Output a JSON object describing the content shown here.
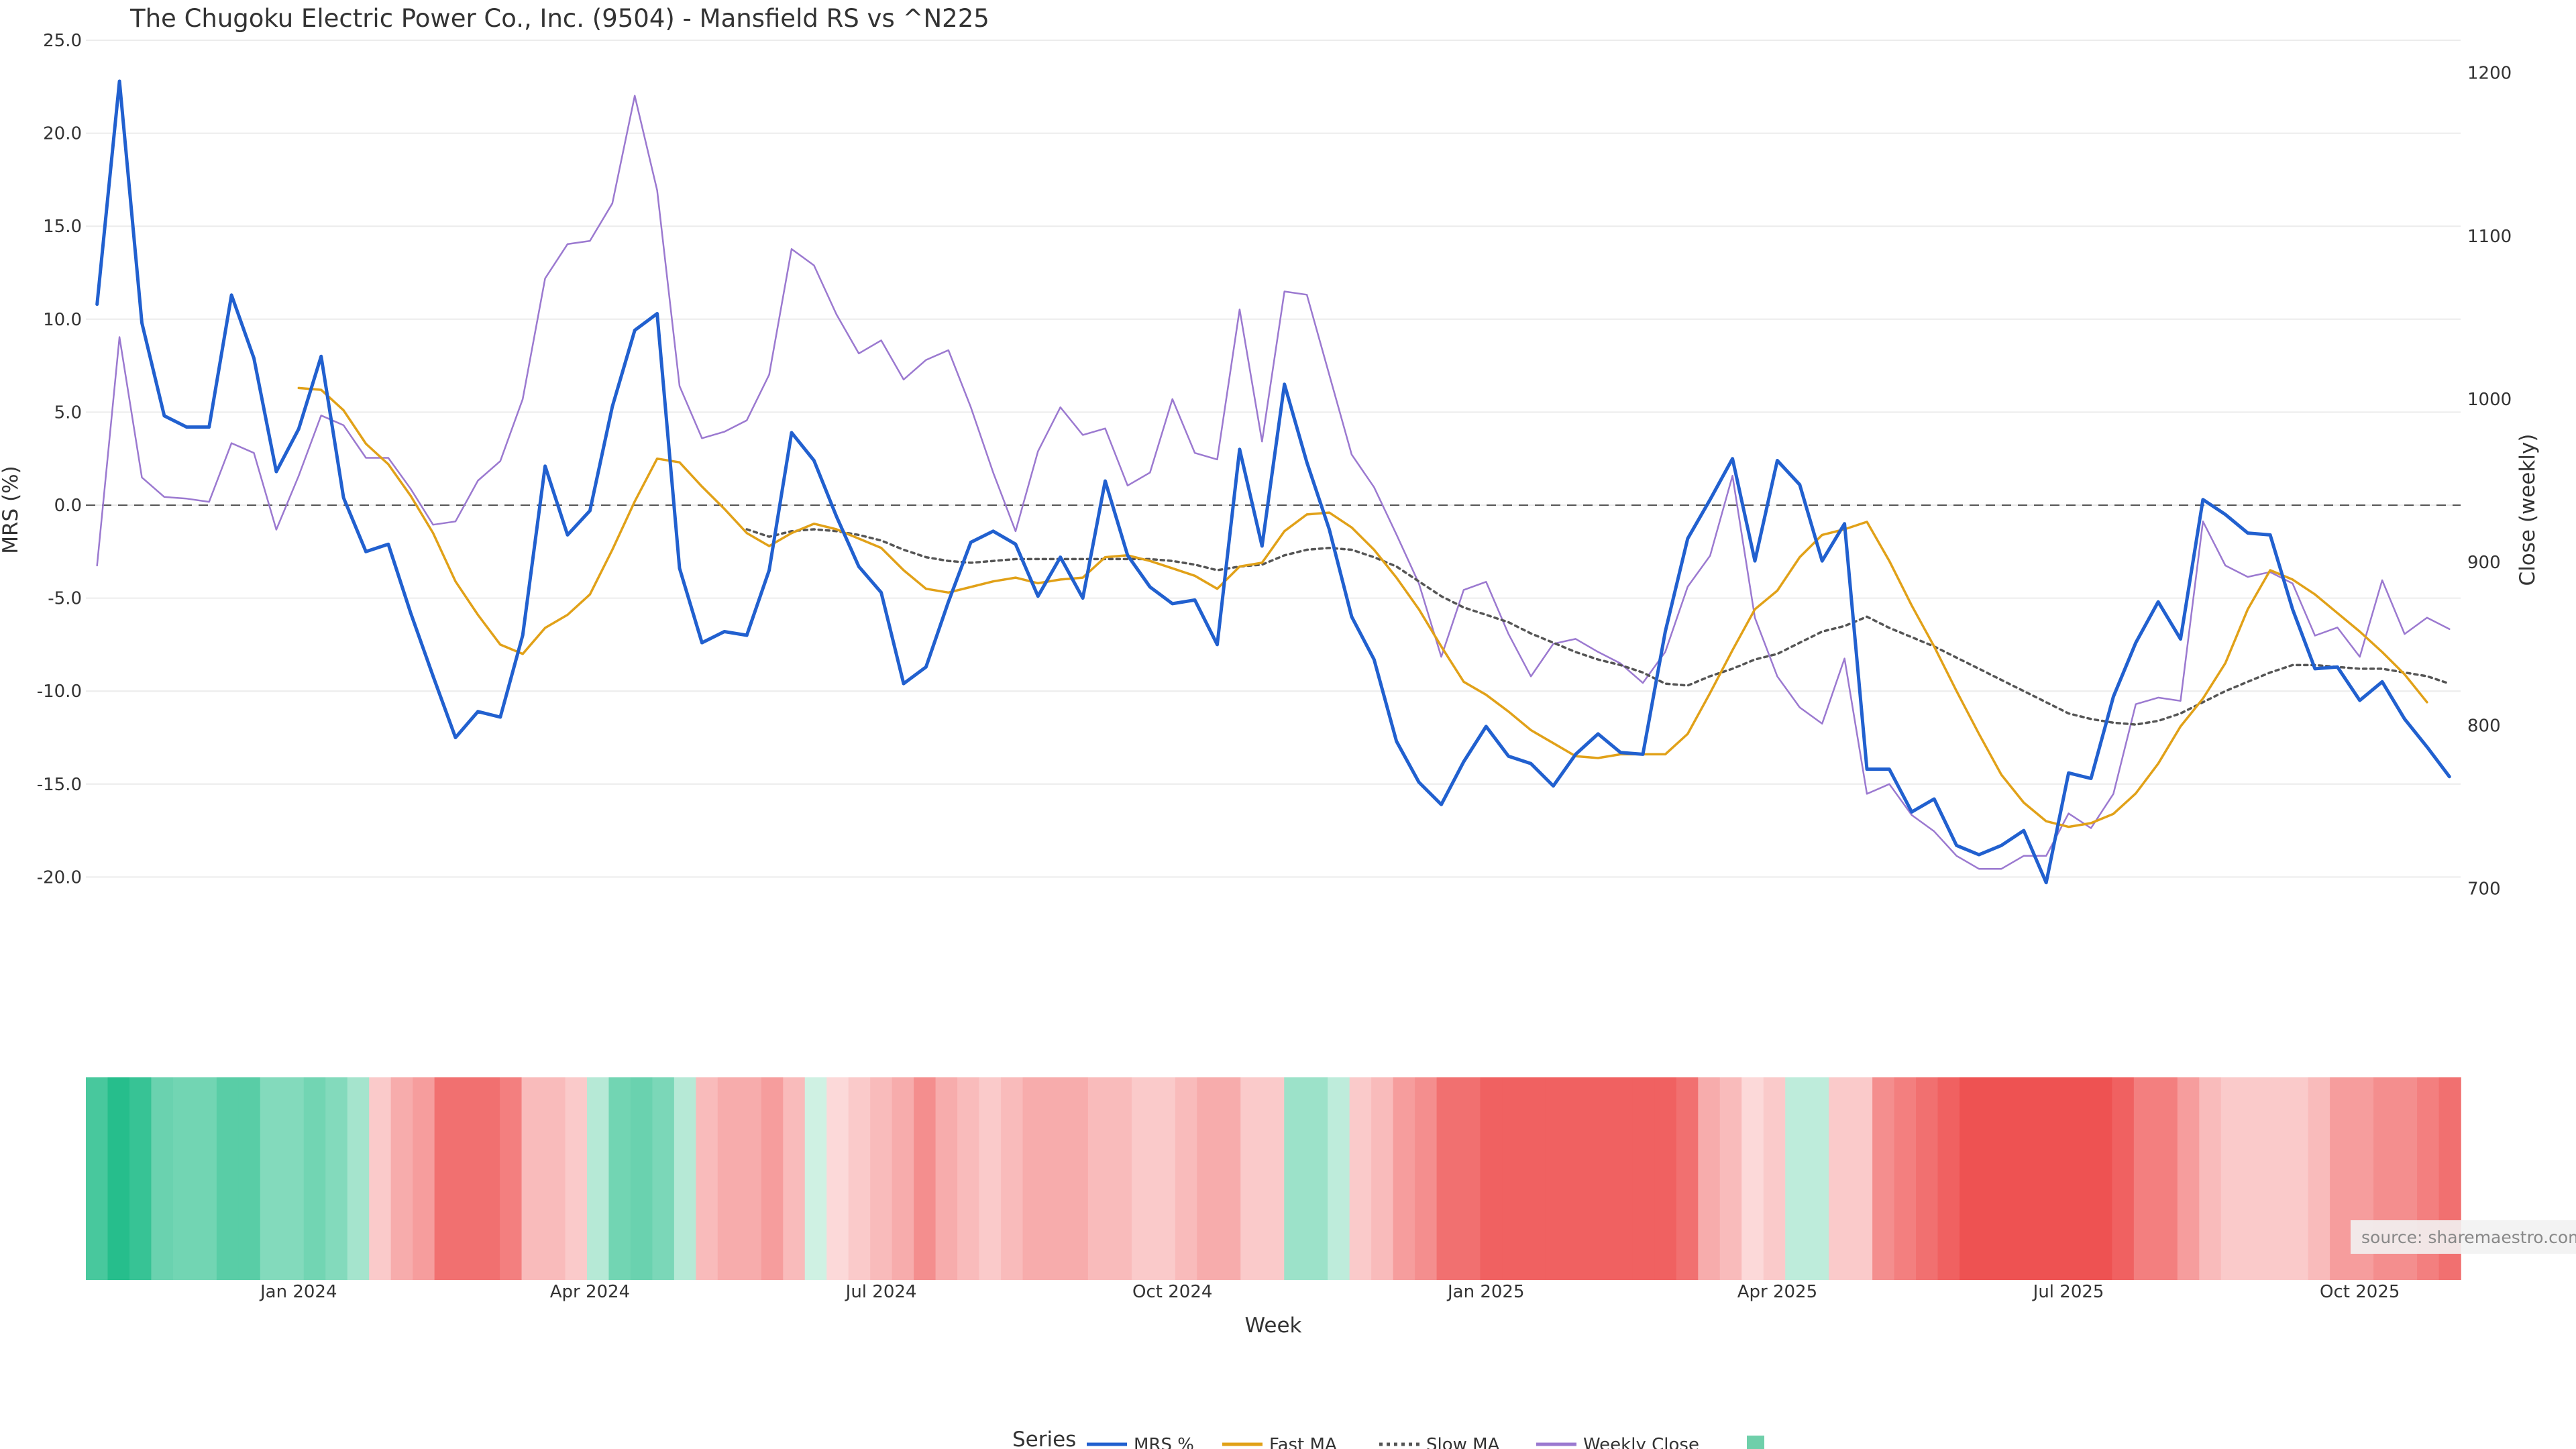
{
  "chart_data": {
    "type": "line",
    "title": "The Chugoku Electric Power Co., Inc. (9504) - Mansfield RS vs ^N225",
    "xlabel": "Week",
    "ylabel": "MRS (%)",
    "y2label": "Close (weekly)",
    "ylim": [
      -25.0,
      25.0
    ],
    "yticks": [
      "25.0",
      "20.0",
      "15.0",
      "10.0",
      "5.0",
      "0.0",
      "-5.0",
      "-10.0",
      "-15.0",
      "-20.0"
    ],
    "y2lim": [
      650,
      1220
    ],
    "y2ticks": [
      "1200",
      "1100",
      "1000",
      "900",
      "800",
      "700"
    ],
    "xticks": [
      "Jan 2024",
      "Apr 2024",
      "Jul 2024",
      "Oct 2024",
      "Jan 2025",
      "Apr 2025",
      "Jul 2025",
      "Oct 2025"
    ],
    "xtick_week_index": [
      9.5,
      22.5,
      35.5,
      48.5,
      62.5,
      75.5,
      88.5,
      101.5
    ],
    "zero_line": 0,
    "grid": true,
    "legend_position": "bottom-center",
    "legend_title": "Series",
    "series": [
      {
        "name": "MRS %",
        "color": "#2160cf",
        "axis": "left",
        "style": "solid",
        "values": [
          10.8,
          22.8,
          9.8,
          4.8,
          4.2,
          4.2,
          11.3,
          7.9,
          1.8,
          4.1,
          8.0,
          0.4,
          -2.5,
          -2.1,
          -5.8,
          -9.2,
          -12.5,
          -11.1,
          -11.4,
          -7.0,
          2.1,
          -1.6,
          -0.3,
          5.3,
          9.4,
          10.3,
          -3.4,
          -7.4,
          -6.8,
          -7.0,
          -3.5,
          3.9,
          2.4,
          -0.6,
          -3.3,
          -4.7,
          -9.6,
          -8.7,
          -5.2,
          -2.0,
          -1.4,
          -2.1,
          -4.9,
          -2.8,
          -5.0,
          1.3,
          -2.7,
          -4.4,
          -5.3,
          -5.1,
          -7.5,
          3.0,
          -2.2,
          6.5,
          2.3,
          -1.3,
          -6.0,
          -8.3,
          -12.7,
          -14.9,
          -16.1,
          -13.8,
          -11.9,
          -13.5,
          -13.9,
          -15.1,
          -13.4,
          -12.3,
          -13.3,
          -13.4,
          -6.8,
          -1.8,
          0.3,
          2.5,
          -3.0,
          2.4,
          1.1,
          -3.0,
          -1.0,
          -14.2,
          -14.2,
          -16.5,
          -15.8,
          -18.3,
          -18.8,
          -18.3,
          -17.5,
          -20.3,
          -14.4,
          -14.7,
          -10.3,
          -7.4,
          -5.2,
          -7.2,
          0.3,
          -0.5,
          -1.5,
          -1.6,
          -5.6,
          -8.8,
          -8.7,
          -10.5,
          -9.5,
          -11.5,
          -13.0,
          -14.6
        ]
      },
      {
        "name": "Fast MA",
        "color": "#e1a118",
        "axis": "left",
        "style": "solid",
        "values": [
          null,
          null,
          null,
          null,
          null,
          null,
          null,
          null,
          null,
          6.3,
          6.2,
          5.1,
          3.3,
          2.2,
          0.5,
          -1.5,
          -4.1,
          -5.9,
          -7.5,
          -8.0,
          -6.6,
          -5.9,
          -4.8,
          -2.4,
          0.2,
          2.5,
          2.3,
          1.0,
          -0.2,
          -1.5,
          -2.2,
          -1.5,
          -1.0,
          -1.3,
          -1.8,
          -2.3,
          -3.5,
          -4.5,
          -4.7,
          -4.4,
          -4.1,
          -3.9,
          -4.2,
          -4.0,
          -3.9,
          -2.8,
          -2.7,
          -3.0,
          -3.4,
          -3.8,
          -4.5,
          -3.3,
          -3.1,
          -1.4,
          -0.5,
          -0.4,
          -1.2,
          -2.4,
          -3.9,
          -5.6,
          -7.6,
          -9.5,
          -10.2,
          -11.1,
          -12.1,
          -12.8,
          -13.5,
          -13.6,
          -13.4,
          -13.4,
          -13.4,
          -12.3,
          -10.1,
          -7.8,
          -5.6,
          -4.6,
          -2.8,
          -1.6,
          -1.3,
          -0.9,
          -3.0,
          -5.4,
          -7.6,
          -10.0,
          -12.3,
          -14.5,
          -16.0,
          -17.0,
          -17.3,
          -17.1,
          -16.6,
          -15.5,
          -13.9,
          -11.9,
          -10.4,
          -8.5,
          -5.6,
          -3.5,
          -4.0,
          -4.8,
          -5.8,
          -6.8,
          -7.9,
          -9.1,
          -10.6
        ]
      },
      {
        "name": "Slow MA",
        "color": "#555555",
        "axis": "left",
        "style": "dotted",
        "values": [
          null,
          null,
          null,
          null,
          null,
          null,
          null,
          null,
          null,
          null,
          null,
          null,
          null,
          null,
          null,
          null,
          null,
          null,
          null,
          null,
          null,
          null,
          null,
          null,
          null,
          null,
          null,
          null,
          null,
          -1.3,
          -1.7,
          -1.4,
          -1.3,
          -1.4,
          -1.6,
          -1.9,
          -2.4,
          -2.8,
          -3.0,
          -3.1,
          -3.0,
          -2.9,
          -2.9,
          -2.9,
          -2.9,
          -2.9,
          -2.9,
          -2.9,
          -3.0,
          -3.2,
          -3.5,
          -3.3,
          -3.2,
          -2.7,
          -2.4,
          -2.3,
          -2.4,
          -2.8,
          -3.3,
          -4.1,
          -4.9,
          -5.5,
          -5.9,
          -6.3,
          -6.9,
          -7.4,
          -7.9,
          -8.3,
          -8.6,
          -9.0,
          -9.6,
          -9.7,
          -9.2,
          -8.8,
          -8.3,
          -8.0,
          -7.4,
          -6.8,
          -6.5,
          -6.0,
          -6.6,
          -7.1,
          -7.6,
          -8.2,
          -8.8,
          -9.4,
          -10.0,
          -10.6,
          -11.2,
          -11.5,
          -11.7,
          -11.8,
          -11.6,
          -11.2,
          -10.6,
          -10.0,
          -9.5,
          -9.0,
          -8.6,
          -8.6,
          -8.7,
          -8.8,
          -8.8,
          -9.0,
          -9.2,
          -9.6
        ]
      },
      {
        "name": "Weekly Close",
        "color": "#9b79d0",
        "axis": "right",
        "style": "solid",
        "values": [
          898,
          1038,
          952,
          940,
          939,
          937,
          973,
          967,
          920,
          953,
          990,
          984,
          964,
          964,
          945,
          923,
          925,
          950,
          962,
          1000,
          1074,
          1095,
          1097,
          1120,
          1186,
          1128,
          1008,
          976,
          980,
          987,
          1015,
          1092,
          1082,
          1052,
          1028,
          1036,
          1012,
          1024,
          1030,
          995,
          955,
          919,
          968,
          995,
          978,
          982,
          947,
          955,
          1000,
          967,
          963,
          1055,
          974,
          1066,
          1064,
          1015,
          966,
          946,
          917,
          887,
          842,
          883,
          888,
          856,
          830,
          850,
          853,
          845,
          838,
          826,
          845,
          885,
          904,
          953,
          866,
          830,
          811,
          801,
          841,
          758,
          764,
          745,
          735,
          720,
          712,
          712,
          720,
          720,
          746,
          737,
          758,
          813,
          817,
          815,
          925,
          898,
          891,
          894,
          887,
          855,
          860,
          842,
          889,
          856,
          866,
          859
        ]
      }
    ],
    "heatmap": {
      "label": "",
      "row_label": "",
      "values": [
        18,
        22,
        20,
        14,
        13,
        13,
        16,
        16,
        11,
        11,
        13,
        11,
        7,
        -2,
        -4,
        -5,
        -8,
        -8,
        -8,
        -7,
        -3,
        -3,
        -2,
        5,
        13,
        14,
        12,
        5,
        -3,
        -4,
        -4,
        -5,
        -3,
        2,
        -1,
        -2,
        -3,
        -4,
        -6,
        -4,
        -3,
        -2,
        -3,
        -4,
        -4,
        -4,
        -3,
        -3,
        -2,
        -2,
        -3,
        -4,
        -4,
        -2,
        -2,
        8,
        8,
        4,
        -2,
        -3,
        -5,
        -6,
        -8,
        -8,
        -9,
        -9,
        -9,
        -9,
        -9,
        -9,
        -9,
        -9,
        -9,
        -8,
        -4,
        -3,
        -1,
        -2,
        4,
        4,
        -2,
        -2,
        -6,
        -7,
        -8,
        -9,
        -10,
        -10,
        -10,
        -10,
        -10,
        -10,
        -10,
        -9,
        -7,
        -7,
        -5,
        -3,
        -2,
        -2,
        -2,
        -2,
        -3,
        -5,
        -5,
        -6,
        -6,
        -7,
        -8
      ]
    }
  },
  "legend_swatch_color": "#6fcfaa",
  "source_label": "source: sharemaestro.com"
}
